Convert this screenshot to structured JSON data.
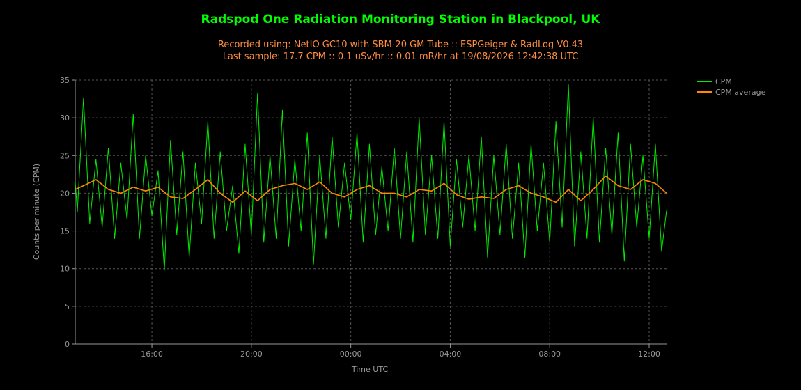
{
  "colors": {
    "background": "#000000",
    "title": "#00ff00",
    "subtitle": "#ff8c40",
    "cpm": "#00ee00",
    "cpm_average": "#ff8800",
    "grid": "#555555",
    "axis_text": "#999999"
  },
  "chart_data": {
    "type": "line",
    "title": "Radspod One Radiation Monitoring Station in Blackpool, UK",
    "subtitle_lines": [
      "Recorded using: NetIO GC10 with SBM-20 GM Tube :: ESPGeiger & RadLog V0.43",
      "Last sample: 17.7 CPM :: 0.1 uSv/hr :: 0.01 mR/hr at 19/08/2026 12:42:38 UTC"
    ],
    "xlabel": "Time UTC",
    "ylabel": "Counts per minute (CPM)",
    "xlim": [
      "2026-08-18T12:55",
      "2026-08-19T12:42"
    ],
    "ylim": [
      0,
      35
    ],
    "y_ticks": [
      0,
      5,
      10,
      15,
      20,
      25,
      30,
      35
    ],
    "x_ticks": [
      {
        "time": "2026-08-18T16:00",
        "label": "16:00"
      },
      {
        "time": "2026-08-18T20:00",
        "label": "20:00"
      },
      {
        "time": "2026-08-19T00:00",
        "label": "00:00"
      },
      {
        "time": "2026-08-19T04:00",
        "label": "04:00"
      },
      {
        "time": "2026-08-19T08:00",
        "label": "08:00"
      },
      {
        "time": "2026-08-19T12:00",
        "label": "12:00"
      }
    ],
    "grid": true,
    "legend_position": "top-right",
    "series": [
      {
        "name": "CPM",
        "color": "#00ee00",
        "times": [
          "2026-08-18T12:55",
          "2026-08-18T13:00",
          "2026-08-18T13:15",
          "2026-08-18T13:30",
          "2026-08-18T13:45",
          "2026-08-18T14:00",
          "2026-08-18T14:15",
          "2026-08-18T14:30",
          "2026-08-18T14:45",
          "2026-08-18T15:00",
          "2026-08-18T15:15",
          "2026-08-18T15:30",
          "2026-08-18T15:45",
          "2026-08-18T16:00",
          "2026-08-18T16:15",
          "2026-08-18T16:30",
          "2026-08-18T16:45",
          "2026-08-18T17:00",
          "2026-08-18T17:15",
          "2026-08-18T17:30",
          "2026-08-18T17:45",
          "2026-08-18T18:00",
          "2026-08-18T18:15",
          "2026-08-18T18:30",
          "2026-08-18T18:45",
          "2026-08-18T19:00",
          "2026-08-18T19:15",
          "2026-08-18T19:30",
          "2026-08-18T19:45",
          "2026-08-18T20:00",
          "2026-08-18T20:15",
          "2026-08-18T20:30",
          "2026-08-18T20:45",
          "2026-08-18T21:00",
          "2026-08-18T21:15",
          "2026-08-18T21:30",
          "2026-08-18T21:45",
          "2026-08-18T22:00",
          "2026-08-18T22:15",
          "2026-08-18T22:30",
          "2026-08-18T22:45",
          "2026-08-18T23:00",
          "2026-08-18T23:15",
          "2026-08-18T23:30",
          "2026-08-18T23:45",
          "2026-08-19T00:00",
          "2026-08-19T00:15",
          "2026-08-19T00:30",
          "2026-08-19T00:45",
          "2026-08-19T01:00",
          "2026-08-19T01:15",
          "2026-08-19T01:30",
          "2026-08-19T01:45",
          "2026-08-19T02:00",
          "2026-08-19T02:15",
          "2026-08-19T02:30",
          "2026-08-19T02:45",
          "2026-08-19T03:00",
          "2026-08-19T03:15",
          "2026-08-19T03:30",
          "2026-08-19T03:45",
          "2026-08-19T04:00",
          "2026-08-19T04:15",
          "2026-08-19T04:30",
          "2026-08-19T04:45",
          "2026-08-19T05:00",
          "2026-08-19T05:15",
          "2026-08-19T05:30",
          "2026-08-19T05:45",
          "2026-08-19T06:00",
          "2026-08-19T06:15",
          "2026-08-19T06:30",
          "2026-08-19T06:45",
          "2026-08-19T07:00",
          "2026-08-19T07:15",
          "2026-08-19T07:30",
          "2026-08-19T07:45",
          "2026-08-19T08:00",
          "2026-08-19T08:15",
          "2026-08-19T08:30",
          "2026-08-19T08:45",
          "2026-08-19T09:00",
          "2026-08-19T09:15",
          "2026-08-19T09:30",
          "2026-08-19T09:45",
          "2026-08-19T10:00",
          "2026-08-19T10:15",
          "2026-08-19T10:30",
          "2026-08-19T10:45",
          "2026-08-19T11:00",
          "2026-08-19T11:15",
          "2026-08-19T11:30",
          "2026-08-19T11:45",
          "2026-08-19T12:00",
          "2026-08-19T12:15",
          "2026-08-19T12:30",
          "2026-08-19T12:42"
        ],
        "values": [
          21.5,
          17.5,
          32.6,
          16.0,
          24.5,
          15.5,
          26.0,
          14.0,
          24.0,
          16.5,
          30.5,
          14.0,
          25.0,
          17.0,
          23.0,
          9.8,
          27.0,
          14.5,
          25.5,
          11.5,
          24.0,
          16.0,
          29.5,
          14.0,
          25.5,
          15.0,
          21.0,
          12.0,
          26.5,
          14.5,
          33.2,
          13.5,
          25.0,
          14.0,
          31.0,
          13.0,
          24.5,
          15.0,
          28.0,
          10.6,
          25.0,
          14.0,
          27.5,
          15.5,
          24.0,
          16.5,
          28.0,
          13.5,
          26.5,
          14.5,
          23.5,
          15.0,
          26.0,
          14.0,
          25.5,
          13.5,
          30.0,
          14.5,
          25.0,
          14.0,
          29.5,
          13.0,
          24.5,
          15.5,
          25.0,
          15.0,
          27.5,
          11.5,
          25.0,
          14.5,
          26.5,
          14.0,
          24.0,
          11.5,
          26.5,
          15.0,
          24.0,
          13.5,
          29.5,
          15.5,
          34.4,
          13.0,
          25.5,
          14.0,
          30.0,
          13.5,
          26.0,
          14.5,
          28.0,
          11.0,
          26.5,
          15.5,
          25.0,
          14.0,
          26.5,
          12.3,
          17.7
        ]
      },
      {
        "name": "CPM average",
        "color": "#ff8800",
        "times": [
          "2026-08-18T12:55",
          "2026-08-18T13:15",
          "2026-08-18T13:45",
          "2026-08-18T14:15",
          "2026-08-18T14:45",
          "2026-08-18T15:15",
          "2026-08-18T15:45",
          "2026-08-18T16:15",
          "2026-08-18T16:45",
          "2026-08-18T17:15",
          "2026-08-18T17:45",
          "2026-08-18T18:15",
          "2026-08-18T18:45",
          "2026-08-18T19:15",
          "2026-08-18T19:45",
          "2026-08-18T20:15",
          "2026-08-18T20:45",
          "2026-08-18T21:15",
          "2026-08-18T21:45",
          "2026-08-18T22:15",
          "2026-08-18T22:45",
          "2026-08-18T23:15",
          "2026-08-18T23:45",
          "2026-08-19T00:15",
          "2026-08-19T00:45",
          "2026-08-19T01:15",
          "2026-08-19T01:45",
          "2026-08-19T02:15",
          "2026-08-19T02:45",
          "2026-08-19T03:15",
          "2026-08-19T03:45",
          "2026-08-19T04:15",
          "2026-08-19T04:45",
          "2026-08-19T05:15",
          "2026-08-19T05:45",
          "2026-08-19T06:15",
          "2026-08-19T06:45",
          "2026-08-19T07:15",
          "2026-08-19T07:45",
          "2026-08-19T08:15",
          "2026-08-19T08:45",
          "2026-08-19T09:15",
          "2026-08-19T09:45",
          "2026-08-19T10:15",
          "2026-08-19T10:45",
          "2026-08-19T11:15",
          "2026-08-19T11:45",
          "2026-08-19T12:15",
          "2026-08-19T12:42"
        ],
        "values": [
          20.5,
          21.0,
          21.8,
          20.5,
          20.0,
          20.8,
          20.3,
          20.8,
          19.5,
          19.3,
          20.5,
          21.8,
          20.0,
          18.8,
          20.3,
          19.0,
          20.5,
          21.0,
          21.3,
          20.5,
          21.5,
          20.0,
          19.5,
          20.5,
          21.0,
          20.0,
          20.0,
          19.5,
          20.5,
          20.3,
          21.3,
          19.8,
          19.2,
          19.5,
          19.3,
          20.5,
          21.0,
          20.0,
          19.5,
          18.8,
          20.5,
          19.0,
          20.5,
          22.3,
          21.0,
          20.5,
          21.8,
          21.3,
          20.0
        ]
      }
    ]
  }
}
